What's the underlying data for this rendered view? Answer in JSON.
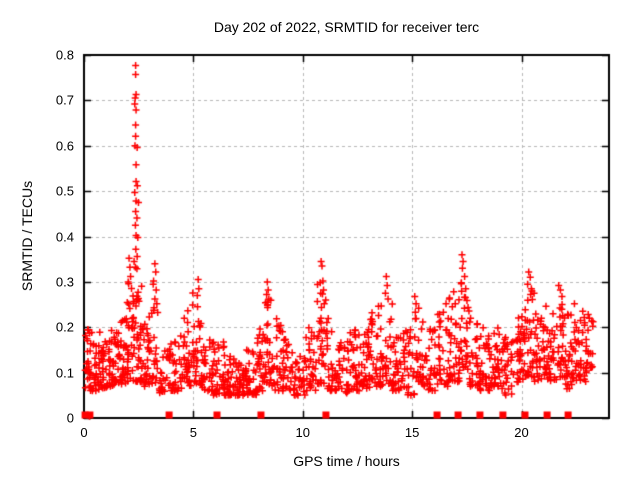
{
  "figure": {
    "background": "#ffffff",
    "border_color": "#000000",
    "grid_color": "#b8b8b8"
  },
  "chart_data": {
    "type": "scatter",
    "title": "Day 202 of 2022, SRMTID for receiver terc",
    "xlabel": "GPS time / hours",
    "ylabel": "SRMTID / TECUs",
    "xlim": [
      0,
      24
    ],
    "ylim": [
      0,
      0.8
    ],
    "xticks": [
      0,
      5,
      10,
      15,
      20
    ],
    "xtick_labels": [
      "0",
      "5",
      "10",
      "15",
      "20"
    ],
    "yticks": [
      0,
      0.1,
      0.2,
      0.3,
      0.4,
      0.5,
      0.6,
      0.7,
      0.8
    ],
    "ytick_labels": [
      "0",
      "0.1",
      "0.2",
      "0.3",
      "0.4",
      "0.5",
      "0.6",
      "0.7",
      "0.8"
    ],
    "grid": true,
    "legend": "none",
    "marker": {
      "shape": "plus",
      "color": "#ff0000",
      "size": 7
    },
    "zero_marker_hours": [
      0.05,
      0.27,
      3.89,
      6.08,
      8.09,
      11.06,
      16.14,
      17.1,
      18.1,
      19.15,
      20.16,
      21.17,
      22.13
    ],
    "outliers": [
      [
        2.36,
        0.777
      ],
      [
        2.36,
        0.757
      ],
      [
        2.38,
        0.713
      ],
      [
        2.34,
        0.705
      ],
      [
        2.32,
        0.692
      ],
      [
        2.38,
        0.679
      ],
      [
        2.36,
        0.646
      ],
      [
        2.36,
        0.621
      ],
      [
        2.33,
        0.6
      ],
      [
        2.43,
        0.596
      ],
      [
        2.38,
        0.558
      ],
      [
        2.38,
        0.521
      ],
      [
        2.44,
        0.512
      ],
      [
        2.32,
        0.497
      ],
      [
        2.38,
        0.478
      ],
      [
        2.49,
        0.475
      ],
      [
        2.36,
        0.455
      ],
      [
        2.42,
        0.441
      ],
      [
        2.35,
        0.425
      ],
      [
        2.38,
        0.402
      ],
      [
        2.46,
        0.398
      ],
      [
        2.37,
        0.372
      ],
      [
        2.43,
        0.356
      ],
      [
        2.29,
        0.345
      ],
      [
        2.35,
        0.332
      ],
      [
        2.42,
        0.329
      ],
      [
        2.06,
        0.352
      ],
      [
        2.1,
        0.332
      ],
      [
        2.13,
        0.312
      ],
      [
        2.02,
        0.3
      ],
      [
        3.18,
        0.302
      ],
      [
        3.24,
        0.34
      ],
      [
        3.28,
        0.322
      ],
      [
        3.3,
        0.282
      ],
      [
        3.24,
        0.262
      ],
      [
        3.2,
        0.243
      ],
      [
        3.33,
        0.252
      ],
      [
        5.22,
        0.305
      ],
      [
        5.25,
        0.285
      ],
      [
        5.18,
        0.27
      ],
      [
        8.38,
        0.3
      ],
      [
        8.42,
        0.282
      ],
      [
        8.35,
        0.272
      ],
      [
        8.45,
        0.262
      ],
      [
        10.84,
        0.345
      ],
      [
        10.88,
        0.335
      ],
      [
        10.92,
        0.302
      ],
      [
        10.8,
        0.298
      ],
      [
        10.95,
        0.282
      ],
      [
        11.05,
        0.26
      ],
      [
        13.82,
        0.312
      ],
      [
        13.86,
        0.292
      ],
      [
        13.78,
        0.275
      ],
      [
        13.9,
        0.262
      ],
      [
        15.12,
        0.268
      ],
      [
        15.18,
        0.252
      ],
      [
        15.3,
        0.242
      ],
      [
        16.55,
        0.252
      ],
      [
        16.7,
        0.262
      ],
      [
        16.9,
        0.278
      ],
      [
        17.28,
        0.36
      ],
      [
        17.33,
        0.345
      ],
      [
        17.3,
        0.33
      ],
      [
        17.4,
        0.312
      ],
      [
        17.25,
        0.298
      ],
      [
        17.45,
        0.285
      ],
      [
        20.33,
        0.322
      ],
      [
        20.4,
        0.31
      ],
      [
        20.28,
        0.295
      ],
      [
        20.45,
        0.285
      ],
      [
        21.7,
        0.292
      ],
      [
        21.78,
        0.282
      ],
      [
        21.85,
        0.268
      ],
      [
        22.42,
        0.252
      ],
      [
        22.8,
        0.235
      ],
      [
        23.05,
        0.228
      ],
      [
        0.25,
        0.004
      ]
    ],
    "band_bins": [
      [
        0.05,
        0.35,
        0.06,
        0.2,
        26
      ],
      [
        0.35,
        0.75,
        0.06,
        0.19,
        32
      ],
      [
        0.75,
        1.15,
        0.065,
        0.17,
        30
      ],
      [
        1.15,
        1.55,
        0.07,
        0.2,
        33
      ],
      [
        1.55,
        1.95,
        0.075,
        0.22,
        33
      ],
      [
        1.95,
        2.25,
        0.08,
        0.3,
        28
      ],
      [
        2.25,
        2.65,
        0.08,
        0.32,
        42
      ],
      [
        2.65,
        2.95,
        0.07,
        0.21,
        22
      ],
      [
        2.95,
        3.4,
        0.075,
        0.3,
        26
      ],
      [
        3.4,
        3.9,
        0.05,
        0.15,
        22
      ],
      [
        3.9,
        4.4,
        0.06,
        0.17,
        30
      ],
      [
        4.4,
        4.9,
        0.065,
        0.24,
        33
      ],
      [
        4.9,
        5.4,
        0.07,
        0.28,
        33
      ],
      [
        5.4,
        5.9,
        0.06,
        0.18,
        30
      ],
      [
        5.9,
        6.4,
        0.05,
        0.17,
        30
      ],
      [
        6.4,
        6.9,
        0.05,
        0.14,
        33
      ],
      [
        6.9,
        7.4,
        0.05,
        0.13,
        33
      ],
      [
        7.4,
        7.9,
        0.05,
        0.15,
        30
      ],
      [
        7.9,
        8.25,
        0.06,
        0.2,
        25
      ],
      [
        8.25,
        8.6,
        0.07,
        0.26,
        30
      ],
      [
        8.6,
        9.1,
        0.06,
        0.22,
        30
      ],
      [
        9.1,
        9.6,
        0.06,
        0.18,
        30
      ],
      [
        9.6,
        10.1,
        0.05,
        0.16,
        30
      ],
      [
        10.1,
        10.6,
        0.06,
        0.2,
        30
      ],
      [
        10.6,
        11.1,
        0.075,
        0.3,
        32
      ],
      [
        11.1,
        11.6,
        0.06,
        0.22,
        30
      ],
      [
        11.6,
        12.1,
        0.055,
        0.18,
        30
      ],
      [
        12.1,
        12.6,
        0.06,
        0.2,
        33
      ],
      [
        12.6,
        13.1,
        0.065,
        0.22,
        33
      ],
      [
        13.1,
        13.6,
        0.07,
        0.25,
        33
      ],
      [
        13.6,
        14.1,
        0.07,
        0.26,
        28
      ],
      [
        14.1,
        14.6,
        0.06,
        0.18,
        30
      ],
      [
        14.6,
        15.1,
        0.05,
        0.2,
        30
      ],
      [
        15.1,
        15.55,
        0.07,
        0.24,
        28
      ],
      [
        15.55,
        16.1,
        0.06,
        0.2,
        30
      ],
      [
        16.1,
        16.7,
        0.07,
        0.24,
        34
      ],
      [
        16.7,
        17.2,
        0.08,
        0.28,
        34
      ],
      [
        17.2,
        17.6,
        0.1,
        0.3,
        28
      ],
      [
        17.6,
        18.1,
        0.07,
        0.22,
        30
      ],
      [
        18.1,
        18.6,
        0.06,
        0.2,
        33
      ],
      [
        18.6,
        19.1,
        0.07,
        0.2,
        33
      ],
      [
        19.1,
        19.6,
        0.05,
        0.18,
        30
      ],
      [
        19.6,
        20.1,
        0.08,
        0.23,
        33
      ],
      [
        20.1,
        20.6,
        0.09,
        0.28,
        36
      ],
      [
        20.6,
        21.1,
        0.08,
        0.23,
        33
      ],
      [
        21.1,
        21.6,
        0.08,
        0.25,
        33
      ],
      [
        21.6,
        22.0,
        0.09,
        0.26,
        28
      ],
      [
        22.0,
        22.5,
        0.06,
        0.23,
        33
      ],
      [
        22.5,
        23.0,
        0.08,
        0.23,
        32
      ],
      [
        23.0,
        23.3,
        0.11,
        0.22,
        14
      ]
    ],
    "seed": 202022
  }
}
